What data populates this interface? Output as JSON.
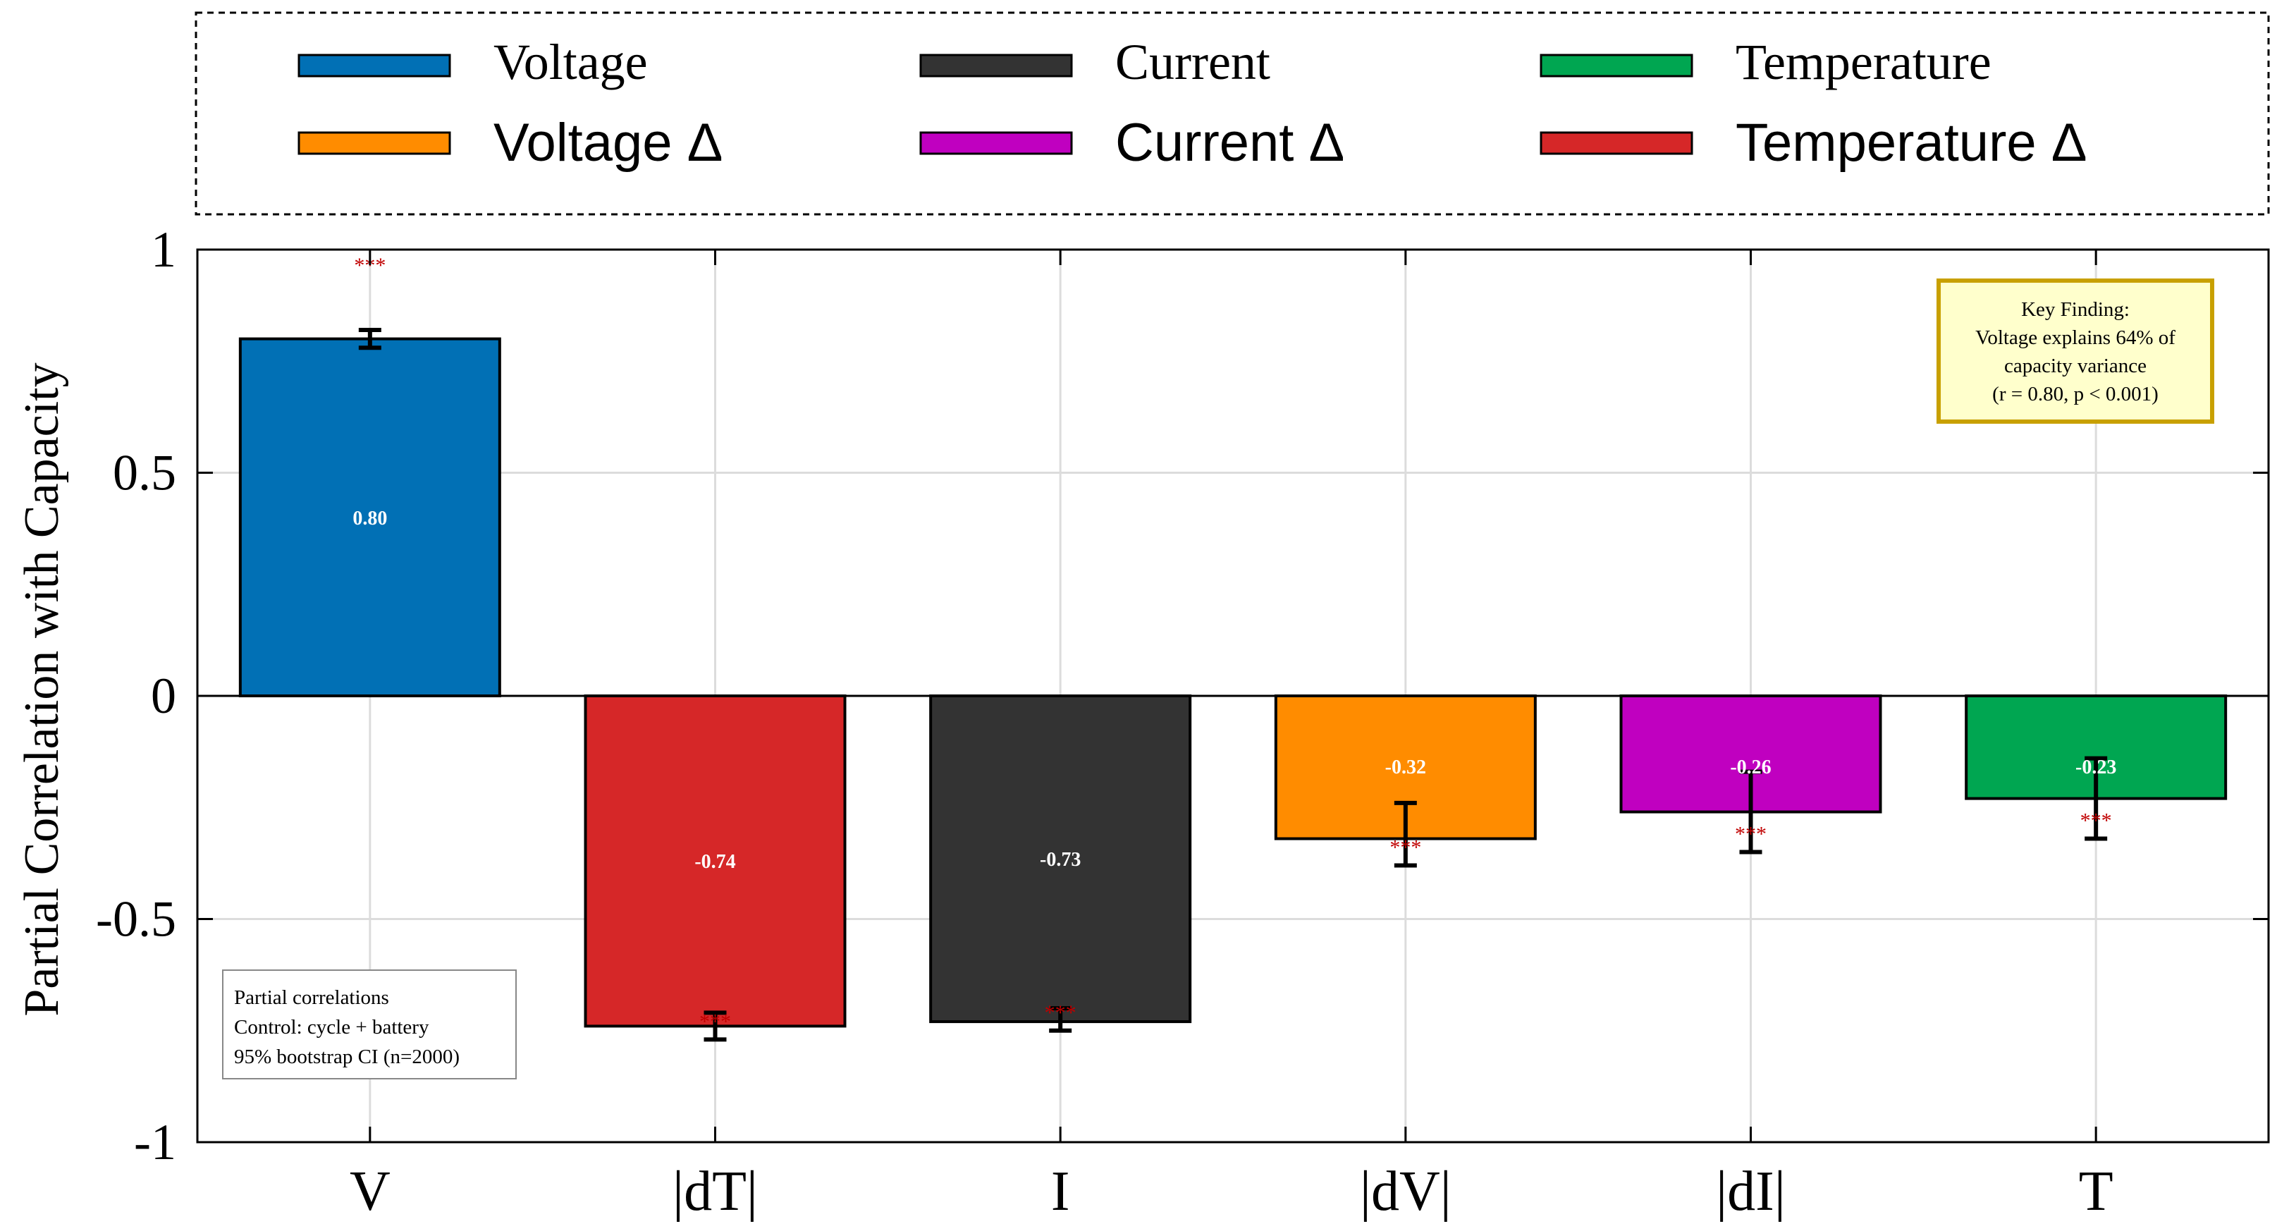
{
  "colors": {
    "voltage": "#0170b5",
    "current": "#333333",
    "temperature": "#00a651",
    "voltage_delta": "#ff8c00",
    "current_delta": "#c000c0",
    "temperature_delta": "#d62728",
    "significance": "#c00000",
    "finding_box_fill": "#ffffcc",
    "finding_box_border": "#c8a000"
  },
  "legend": {
    "items": [
      {
        "label": "Voltage",
        "color": "#0170b5",
        "style": "serif"
      },
      {
        "label": "Current",
        "color": "#333333",
        "style": "serif"
      },
      {
        "label": "Temperature",
        "color": "#00a651",
        "style": "serif"
      },
      {
        "label": "Voltage Δ",
        "color": "#ff8c00",
        "style": "sans"
      },
      {
        "label": "Current Δ",
        "color": "#c000c0",
        "style": "sans"
      },
      {
        "label": "Temperature Δ",
        "color": "#d62728",
        "style": "sans"
      }
    ]
  },
  "note_box": {
    "lines": [
      "Partial correlations",
      "Control: cycle + battery",
      "95% bootstrap CI (n=2000)"
    ]
  },
  "finding_box": {
    "lines": [
      "Key Finding:",
      "Voltage explains 64% of",
      "capacity variance",
      "(r = 0.80, p < 0.001)"
    ]
  },
  "chart_data": {
    "type": "bar",
    "title": "",
    "xlabel": "",
    "ylabel": "Partial Correlation with Capacity",
    "ylim": [
      -1,
      1
    ],
    "yticks": [
      1,
      0.5,
      0,
      -0.5,
      -1
    ],
    "ytick_labels": [
      "1",
      "0.5",
      "0",
      "-0.5",
      "-1"
    ],
    "grid": true,
    "categories": [
      "V",
      "|dT|",
      "I",
      "|dV|",
      "|dI|",
      "T"
    ],
    "values": [
      0.8,
      -0.74,
      -0.73,
      -0.32,
      -0.26,
      -0.23
    ],
    "value_labels": [
      "0.80",
      "-0.74",
      "-0.73",
      "-0.32",
      "-0.26",
      "-0.23"
    ],
    "ci_low": [
      0.78,
      -0.77,
      -0.75,
      -0.38,
      -0.35,
      -0.32
    ],
    "ci_high": [
      0.82,
      -0.71,
      -0.7,
      -0.24,
      -0.17,
      -0.14
    ],
    "bar_colors": [
      "#0170b5",
      "#d62728",
      "#333333",
      "#ff8c00",
      "#c000c0",
      "#00a651"
    ],
    "significance": [
      "***",
      "***",
      "***",
      "***",
      "***",
      "***"
    ]
  }
}
